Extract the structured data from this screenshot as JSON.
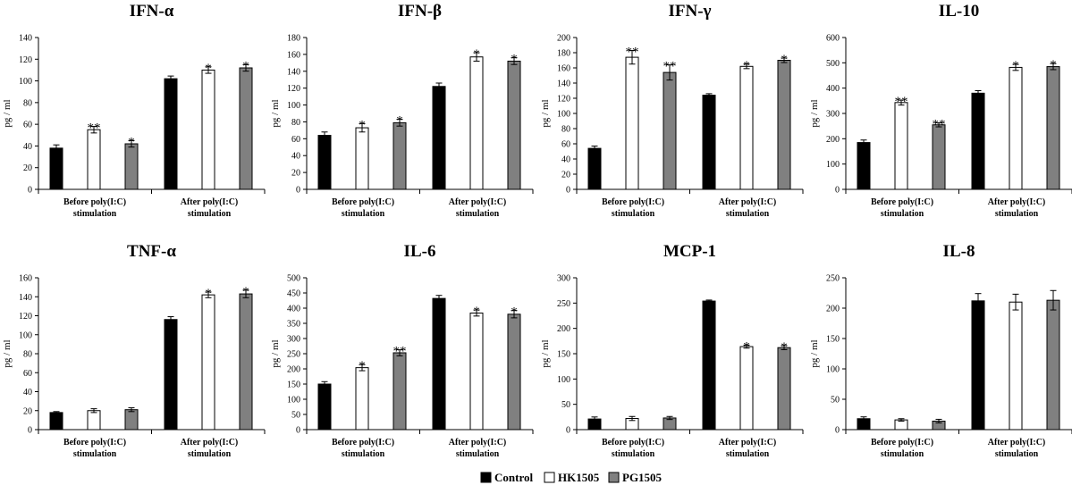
{
  "chart_data": [
    {
      "type": "bar",
      "title": "IFN-α",
      "ylabel": "pg / ml",
      "ylim": [
        0,
        140
      ],
      "ytick_step": 20,
      "categories": [
        [
          "Before poly(I:C)",
          "stimulation"
        ],
        [
          "After poly(I:C)",
          "stimulation"
        ]
      ],
      "series": [
        {
          "name": "Control",
          "values": [
            38,
            102
          ],
          "errors": [
            3,
            2.5
          ],
          "sig": [
            "",
            ""
          ]
        },
        {
          "name": "HK1505",
          "values": [
            55,
            110
          ],
          "errors": [
            3,
            3
          ],
          "sig": [
            "**",
            "*"
          ]
        },
        {
          "name": "PG1505",
          "values": [
            42,
            112
          ],
          "errors": [
            3,
            3
          ],
          "sig": [
            "*",
            "*"
          ]
        }
      ]
    },
    {
      "type": "bar",
      "title": "IFN-β",
      "ylabel": "pg / ml",
      "ylim": [
        0,
        180
      ],
      "ytick_step": 20,
      "categories": [
        [
          "Before poly(I:C)",
          "stimulation"
        ],
        [
          "After poly(I:C)",
          "stimulation"
        ]
      ],
      "series": [
        {
          "name": "Control",
          "values": [
            64,
            122
          ],
          "errors": [
            4,
            4
          ],
          "sig": [
            "",
            ""
          ]
        },
        {
          "name": "HK1505",
          "values": [
            73,
            157
          ],
          "errors": [
            5,
            5
          ],
          "sig": [
            "*",
            "*"
          ]
        },
        {
          "name": "PG1505",
          "values": [
            79,
            152
          ],
          "errors": [
            4,
            4
          ],
          "sig": [
            "*",
            "*"
          ]
        }
      ]
    },
    {
      "type": "bar",
      "title": "IFN-γ",
      "ylabel": "pg / ml",
      "ylim": [
        0,
        200
      ],
      "ytick_step": 20,
      "categories": [
        [
          "Before poly(I:C)",
          "stimulation"
        ],
        [
          "After poly(I:C)",
          "stimulation"
        ]
      ],
      "series": [
        {
          "name": "Control",
          "values": [
            54,
            124
          ],
          "errors": [
            3,
            2
          ],
          "sig": [
            "",
            ""
          ]
        },
        {
          "name": "HK1505",
          "values": [
            174,
            162
          ],
          "errors": [
            9,
            3
          ],
          "sig": [
            "**",
            "*"
          ]
        },
        {
          "name": "PG1505",
          "values": [
            154,
            170
          ],
          "errors": [
            10,
            3
          ],
          "sig": [
            "**",
            "*"
          ]
        }
      ]
    },
    {
      "type": "bar",
      "title": "IL-10",
      "ylabel": "pg / ml",
      "ylim": [
        0,
        600
      ],
      "ytick_step": 100,
      "categories": [
        [
          "Before poly(I:C)",
          "stimulation"
        ],
        [
          "After poly(I:C)",
          "stimulation"
        ]
      ],
      "series": [
        {
          "name": "Control",
          "values": [
            185,
            380
          ],
          "errors": [
            10,
            10
          ],
          "sig": [
            "",
            ""
          ]
        },
        {
          "name": "HK1505",
          "values": [
            343,
            482
          ],
          "errors": [
            10,
            12
          ],
          "sig": [
            "**",
            "*"
          ]
        },
        {
          "name": "PG1505",
          "values": [
            255,
            485
          ],
          "errors": [
            8,
            12
          ],
          "sig": [
            "**",
            "*"
          ]
        }
      ]
    },
    {
      "type": "bar",
      "title": "TNF-α",
      "ylabel": "pg / ml",
      "ylim": [
        0,
        160
      ],
      "ytick_step": 20,
      "categories": [
        [
          "Before poly(I:C)",
          "stimulation"
        ],
        [
          "After poly(I:C)",
          "stimulation"
        ]
      ],
      "series": [
        {
          "name": "Control",
          "values": [
            18,
            116
          ],
          "errors": [
            1,
            3
          ],
          "sig": [
            "",
            ""
          ]
        },
        {
          "name": "HK1505",
          "values": [
            20,
            142
          ],
          "errors": [
            2,
            3
          ],
          "sig": [
            "",
            "*"
          ]
        },
        {
          "name": "PG1505",
          "values": [
            21,
            143
          ],
          "errors": [
            2,
            4
          ],
          "sig": [
            "",
            "*"
          ]
        }
      ]
    },
    {
      "type": "bar",
      "title": "IL-6",
      "ylabel": "pg / ml",
      "ylim": [
        0,
        500
      ],
      "ytick_step": 50,
      "categories": [
        [
          "Before poly(I:C)",
          "stimulation"
        ],
        [
          "After poly(I:C)",
          "stimulation"
        ]
      ],
      "series": [
        {
          "name": "Control",
          "values": [
            150,
            432
          ],
          "errors": [
            8,
            10
          ],
          "sig": [
            "",
            ""
          ]
        },
        {
          "name": "HK1505",
          "values": [
            204,
            384
          ],
          "errors": [
            10,
            10
          ],
          "sig": [
            "*",
            "*"
          ]
        },
        {
          "name": "PG1505",
          "values": [
            253,
            380
          ],
          "errors": [
            10,
            12
          ],
          "sig": [
            "**",
            "*"
          ]
        }
      ]
    },
    {
      "type": "bar",
      "title": "MCP-1",
      "ylabel": "pg / ml",
      "ylim": [
        0,
        300
      ],
      "ytick_step": 50,
      "categories": [
        [
          "Before poly(I:C)",
          "stimulation"
        ],
        [
          "After poly(I:C)",
          "stimulation"
        ]
      ],
      "series": [
        {
          "name": "Control",
          "values": [
            21,
            254
          ],
          "errors": [
            4,
            2
          ],
          "sig": [
            "",
            ""
          ]
        },
        {
          "name": "HK1505",
          "values": [
            22,
            164
          ],
          "errors": [
            4,
            3
          ],
          "sig": [
            "",
            "*"
          ]
        },
        {
          "name": "PG1505",
          "values": [
            23,
            162
          ],
          "errors": [
            3,
            4
          ],
          "sig": [
            "",
            "*"
          ]
        }
      ]
    },
    {
      "type": "bar",
      "title": "IL-8",
      "ylabel": "pg / ml",
      "ylim": [
        0,
        250
      ],
      "ytick_step": 50,
      "categories": [
        [
          "Before poly(I:C)",
          "stimulation"
        ],
        [
          "After poly(I:C)",
          "stimulation"
        ]
      ],
      "series": [
        {
          "name": "Control",
          "values": [
            18,
            212
          ],
          "errors": [
            3,
            12
          ],
          "sig": [
            "",
            ""
          ]
        },
        {
          "name": "HK1505",
          "values": [
            16,
            210
          ],
          "errors": [
            2,
            13
          ],
          "sig": [
            "",
            ""
          ]
        },
        {
          "name": "PG1505",
          "values": [
            14,
            213
          ],
          "errors": [
            3,
            16
          ],
          "sig": [
            "",
            ""
          ]
        }
      ]
    }
  ],
  "legend": {
    "items": [
      {
        "label": "Control",
        "color": "#000000"
      },
      {
        "label": "HK1505",
        "color": "#ffffff"
      },
      {
        "label": "PG1505",
        "color": "#808080"
      }
    ]
  }
}
